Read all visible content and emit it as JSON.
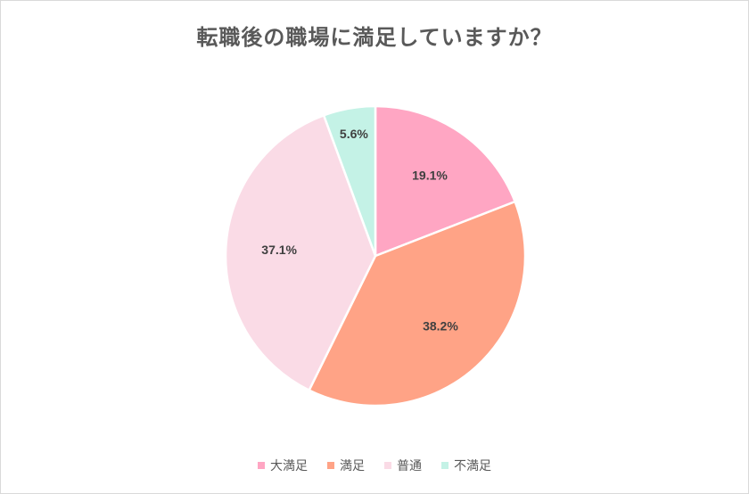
{
  "chart_data": {
    "type": "pie",
    "title": "転職後の職場に満足していますか？",
    "categories": [
      "大満足",
      "満足",
      "普通",
      "不満足"
    ],
    "values": [
      19.1,
      38.2,
      37.1,
      5.6
    ],
    "labels": [
      "19.1%",
      "38.2%",
      "37.1%",
      "5.6%"
    ],
    "colors": [
      "#ffa6c3",
      "#ffa386",
      "#fadbe6",
      "#c4f2e6"
    ],
    "legend": "bottom",
    "start_angle_deg": 0,
    "direction": "clockwise"
  }
}
